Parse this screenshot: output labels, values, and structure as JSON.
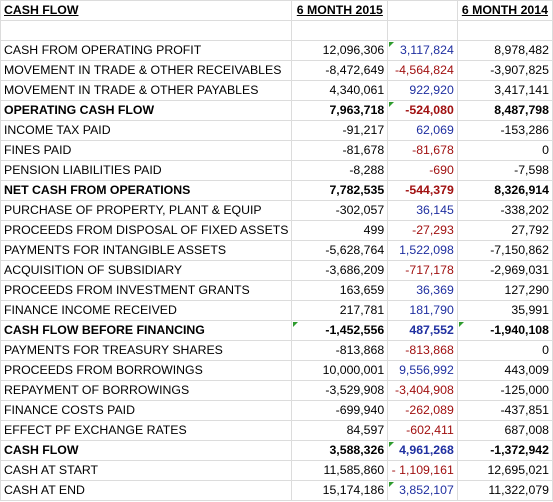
{
  "header": {
    "label": "CASH FLOW",
    "col1": "6 MONTH 2015",
    "col2": "",
    "col3": "6 MONTH 2014"
  },
  "colors": {
    "blue_text": "#1f2fa0",
    "red_text": "#a01010",
    "comment_marker": "#2e9c2e"
  },
  "rows": [
    {
      "label": "",
      "v2015": "",
      "diff": "",
      "diffColor": "black",
      "v2014": "",
      "bold": false
    },
    {
      "label": "CASH FROM OPERATING PROFIT",
      "v2015": "12,096,306",
      "diff": "3,117,824",
      "diffColor": "blue",
      "v2014": "8,978,482",
      "bold": false,
      "marker": "diff"
    },
    {
      "label": "MOVEMENT IN TRADE & OTHER RECEIVABLES",
      "v2015": "-8,472,649",
      "diff": "-4,564,824",
      "diffColor": "red",
      "v2014": "-3,907,825",
      "bold": false
    },
    {
      "label": "MOVEMENT IN TRADE & OTHER PAYABLES",
      "v2015": "4,340,061",
      "diff": "922,920",
      "diffColor": "blue",
      "v2014": "3,417,141",
      "bold": false
    },
    {
      "label": "OPERATING CASH FLOW",
      "v2015": "7,963,718",
      "diff": "-524,080",
      "diffColor": "red",
      "v2014": "8,487,798",
      "bold": true,
      "marker": "diff"
    },
    {
      "label": "INCOME TAX PAID",
      "v2015": "-91,217",
      "diff": "62,069",
      "diffColor": "blue",
      "v2014": "-153,286",
      "bold": false
    },
    {
      "label": "FINES PAID",
      "v2015": "-81,678",
      "diff": "-81,678",
      "diffColor": "red",
      "v2014": "0",
      "bold": false
    },
    {
      "label": "PENSION LIABILITIES PAID",
      "v2015": "-8,288",
      "diff": "-690",
      "diffColor": "red",
      "v2014": "-7,598",
      "bold": false
    },
    {
      "label": "NET CASH FROM OPERATIONS",
      "v2015": "7,782,535",
      "diff": "-544,379",
      "diffColor": "red",
      "v2014": "8,326,914",
      "bold": true
    },
    {
      "label": "PURCHASE OF PROPERTY, PLANT & EQUIP",
      "v2015": "-302,057",
      "diff": "36,145",
      "diffColor": "blue",
      "v2014": "-338,202",
      "bold": false
    },
    {
      "label": "PROCEEDS FROM DISPOSAL OF FIXED ASSETS",
      "v2015": "499",
      "diff": "-27,293",
      "diffColor": "red",
      "v2014": "27,792",
      "bold": false
    },
    {
      "label": "PAYMENTS FOR INTANGIBLE ASSETS",
      "v2015": "-5,628,764",
      "diff": "1,522,098",
      "diffColor": "blue",
      "v2014": "-7,150,862",
      "bold": false
    },
    {
      "label": "ACQUISITION OF SUBSIDIARY",
      "v2015": "-3,686,209",
      "diff": "-717,178",
      "diffColor": "red",
      "v2014": "-2,969,031",
      "bold": false
    },
    {
      "label": "PROCEEDS FROM INVESTMENT GRANTS",
      "v2015": "163,659",
      "diff": "36,369",
      "diffColor": "blue",
      "v2014": "127,290",
      "bold": false
    },
    {
      "label": "FINANCE INCOME RECEIVED",
      "v2015": "217,781",
      "diff": "181,790",
      "diffColor": "blue",
      "v2014": "35,991",
      "bold": false
    },
    {
      "label": "CASH FLOW BEFORE FINANCING",
      "v2015": "-1,452,556",
      "diff": "487,552",
      "diffColor": "blue",
      "v2014": "-1,940,108",
      "bold": true,
      "marker": "both"
    },
    {
      "label": "PAYMENTS FOR TREASURY SHARES",
      "v2015": "-813,868",
      "diff": "-813,868",
      "diffColor": "red",
      "v2014": "0",
      "bold": false
    },
    {
      "label": "PROCEEDS FROM BORROWINGS",
      "v2015": "10,000,001",
      "diff": "9,556,992",
      "diffColor": "blue",
      "v2014": "443,009",
      "bold": false
    },
    {
      "label": "REPAYMENT OF BORROWINGS",
      "v2015": "-3,529,908",
      "diff": "-3,404,908",
      "diffColor": "red",
      "v2014": "-125,000",
      "bold": false
    },
    {
      "label": "FINANCE COSTS PAID",
      "v2015": "-699,940",
      "diff": "-262,089",
      "diffColor": "red",
      "v2014": "-437,851",
      "bold": false
    },
    {
      "label": "EFFECT PF EXCHANGE RATES",
      "v2015": "84,597",
      "diff": "-602,411",
      "diffColor": "red",
      "v2014": "687,008",
      "bold": false
    },
    {
      "label": "CASH FLOW",
      "v2015": "3,588,326",
      "diff": "4,961,268",
      "diffColor": "blue",
      "v2014": "-1,372,942",
      "bold": true,
      "marker": "diff"
    },
    {
      "label": "CASH AT START",
      "v2015": "11,585,860",
      "diff": "- 1,109,161",
      "diffColor": "red",
      "v2014": "12,695,021",
      "bold": false
    },
    {
      "label": "CASH AT END",
      "v2015": "15,174,186",
      "diff": "3,852,107",
      "diffColor": "blue",
      "v2014": "11,322,079",
      "bold": false,
      "marker": "diff"
    }
  ]
}
